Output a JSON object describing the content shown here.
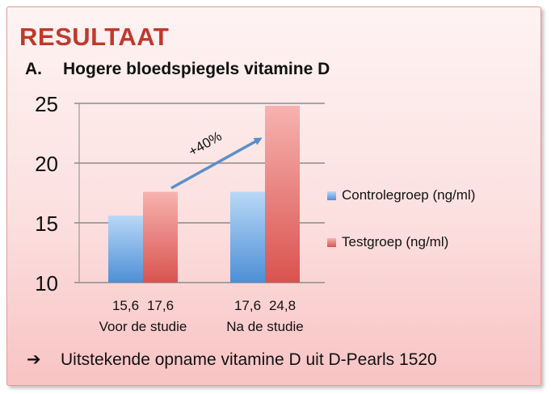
{
  "title": "RESULTAAT",
  "subtitle": {
    "number": "A.",
    "text": "Hogere bloedspiegels vitamine D"
  },
  "annotation": "+40%",
  "conclusion": {
    "arrow": "➔",
    "text": "Uitstekende opname vitamine D uit D-Pearls 1520"
  },
  "colors": {
    "control": "#5b9bd5",
    "test": "#e06666",
    "accent": "#c0392b"
  },
  "chart_data": {
    "type": "bar",
    "categories": [
      "Voor de studie",
      "Na de studie"
    ],
    "series": [
      {
        "name": "Controlegroep (ng/ml)",
        "values": [
          15.6,
          17.6
        ],
        "value_labels": [
          "15,6",
          "17,6"
        ]
      },
      {
        "name": "Testgroep (ng/ml)",
        "values": [
          17.6,
          24.8
        ],
        "value_labels": [
          "17,6",
          "24,8"
        ]
      }
    ],
    "ylim": [
      10,
      25
    ],
    "yticks": [
      10,
      15,
      20,
      25
    ],
    "grid": true,
    "legend_position": "right"
  }
}
